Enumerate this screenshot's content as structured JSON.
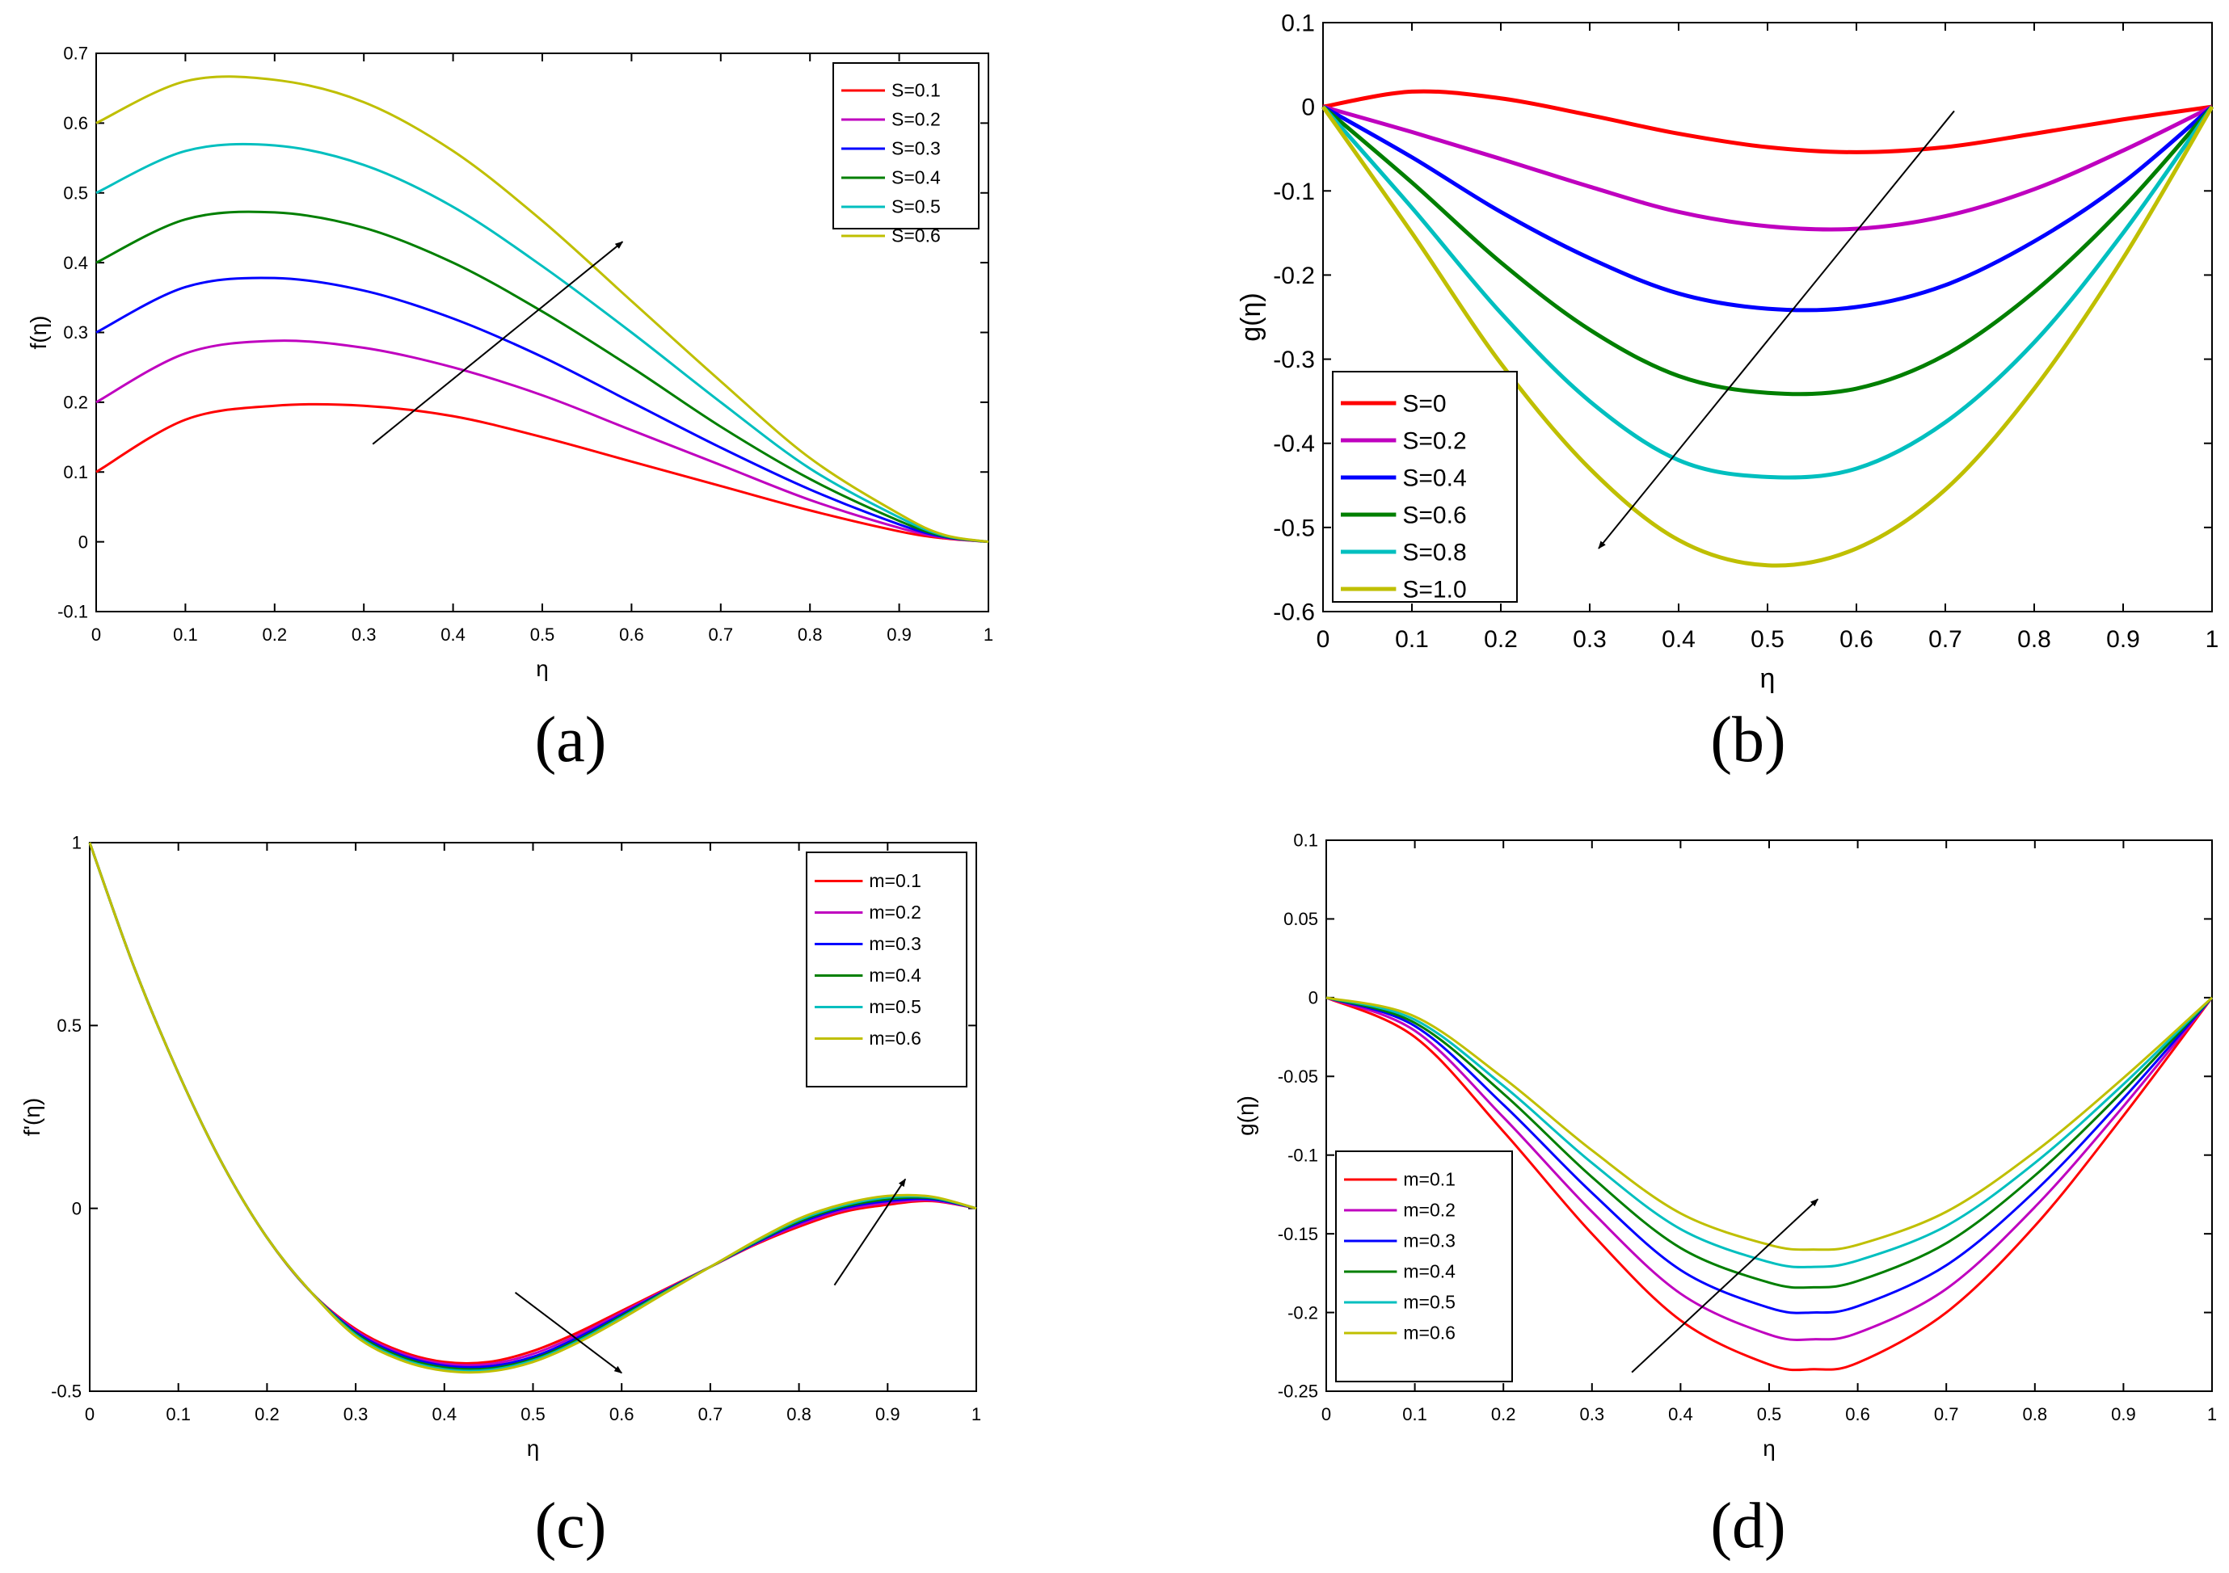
{
  "figure": {
    "panels": [
      {
        "id": "a",
        "caption": "(a)"
      },
      {
        "id": "b",
        "caption": "(b)"
      },
      {
        "id": "c",
        "caption": "(c)"
      },
      {
        "id": "d",
        "caption": "(d)"
      }
    ]
  },
  "chart_data": [
    {
      "panel": "a",
      "type": "line",
      "caption": "(a)",
      "xlabel": "η",
      "ylabel": "f(η)",
      "xlim": [
        0,
        1
      ],
      "ylim": [
        -0.1,
        0.7
      ],
      "xticks": [
        0,
        0.1,
        0.2,
        0.3,
        0.4,
        0.5,
        0.6,
        0.7,
        0.8,
        0.9,
        1
      ],
      "xticklabels": [
        "0",
        "0.1",
        "0.2",
        "0.3",
        "0.4",
        "0.5",
        "0.6",
        "0.7",
        "0.8",
        "0.9",
        "1"
      ],
      "yticks": [
        -0.1,
        0,
        0.1,
        0.2,
        0.3,
        0.4,
        0.5,
        0.6,
        0.7
      ],
      "yticklabels": [
        "-0.1",
        "0",
        "0.1",
        "0.2",
        "0.3",
        "0.4",
        "0.5",
        "0.6",
        "0.7"
      ],
      "legend_position": "top-right",
      "x": [
        0,
        0.1,
        0.2,
        0.3,
        0.4,
        0.5,
        0.6,
        0.7,
        0.8,
        0.9,
        0.95,
        1
      ],
      "series": [
        {
          "name": "S=0.1",
          "color": "#ff0000",
          "values": [
            0.1,
            0.175,
            0.195,
            0.195,
            0.18,
            0.15,
            0.115,
            0.08,
            0.045,
            0.015,
            0.005,
            0
          ]
        },
        {
          "name": "S=0.2",
          "color": "#bf00bf",
          "values": [
            0.2,
            0.27,
            0.288,
            0.278,
            0.25,
            0.21,
            0.16,
            0.11,
            0.06,
            0.02,
            0.006,
            0
          ]
        },
        {
          "name": "S=0.3",
          "color": "#0000ff",
          "values": [
            0.3,
            0.365,
            0.378,
            0.36,
            0.32,
            0.265,
            0.2,
            0.135,
            0.075,
            0.025,
            0.007,
            0
          ]
        },
        {
          "name": "S=0.4",
          "color": "#007f00",
          "values": [
            0.4,
            0.462,
            0.472,
            0.45,
            0.4,
            0.33,
            0.25,
            0.165,
            0.09,
            0.03,
            0.008,
            0
          ]
        },
        {
          "name": "S=0.5",
          "color": "#00bfbf",
          "values": [
            0.5,
            0.56,
            0.568,
            0.54,
            0.48,
            0.395,
            0.3,
            0.2,
            0.105,
            0.035,
            0.009,
            0
          ]
        },
        {
          "name": "S=0.6",
          "color": "#bfbf00",
          "values": [
            0.6,
            0.66,
            0.662,
            0.63,
            0.56,
            0.46,
            0.345,
            0.23,
            0.12,
            0.04,
            0.01,
            0
          ]
        }
      ],
      "arrows": [
        {
          "from": [
            0.31,
            0.14
          ],
          "to": [
            0.59,
            0.43
          ]
        }
      ]
    },
    {
      "panel": "b",
      "type": "line",
      "caption": "(b)",
      "xlabel": "η",
      "ylabel": "g(η)",
      "xlim": [
        0,
        1
      ],
      "ylim": [
        -0.6,
        0.1
      ],
      "xticks": [
        0,
        0.1,
        0.2,
        0.3,
        0.4,
        0.5,
        0.6,
        0.7,
        0.8,
        0.9,
        1
      ],
      "xticklabels": [
        "0",
        "0.1",
        "0.2",
        "0.3",
        "0.4",
        "0.5",
        "0.6",
        "0.7",
        "0.8",
        "0.9",
        "1"
      ],
      "yticks": [
        -0.6,
        -0.5,
        -0.4,
        -0.3,
        -0.2,
        -0.1,
        0,
        0.1
      ],
      "yticklabels": [
        "-0.6",
        "-0.5",
        "-0.4",
        "-0.3",
        "-0.2",
        "-0.1",
        "0",
        "0.1"
      ],
      "legend_position": "bottom-left",
      "x": [
        0,
        0.1,
        0.2,
        0.3,
        0.4,
        0.5,
        0.6,
        0.7,
        0.8,
        0.9,
        1
      ],
      "series": [
        {
          "name": "S=0",
          "color": "#ff0000",
          "values": [
            0,
            0.018,
            0.01,
            -0.01,
            -0.032,
            -0.048,
            -0.054,
            -0.048,
            -0.032,
            -0.015,
            0
          ]
        },
        {
          "name": "S=0.2",
          "color": "#bf00bf",
          "values": [
            0,
            -0.03,
            -0.062,
            -0.095,
            -0.125,
            -0.142,
            -0.145,
            -0.13,
            -0.098,
            -0.052,
            0
          ]
        },
        {
          "name": "S=0.4",
          "color": "#0000ff",
          "values": [
            0,
            -0.06,
            -0.125,
            -0.18,
            -0.222,
            -0.24,
            -0.238,
            -0.212,
            -0.16,
            -0.09,
            0
          ]
        },
        {
          "name": "S=0.6",
          "color": "#007f00",
          "values": [
            0,
            -0.09,
            -0.185,
            -0.265,
            -0.32,
            -0.34,
            -0.335,
            -0.295,
            -0.22,
            -0.12,
            0
          ]
        },
        {
          "name": "S=0.8",
          "color": "#00bfbf",
          "values": [
            0,
            -0.12,
            -0.245,
            -0.35,
            -0.42,
            -0.44,
            -0.43,
            -0.375,
            -0.28,
            -0.15,
            0
          ]
        },
        {
          "name": "S=1.0",
          "color": "#bfbf00",
          "values": [
            0,
            -0.15,
            -0.305,
            -0.43,
            -0.515,
            -0.545,
            -0.525,
            -0.455,
            -0.335,
            -0.18,
            0
          ]
        }
      ],
      "arrows": [
        {
          "from": [
            0.71,
            -0.005
          ],
          "to": [
            0.31,
            -0.525
          ]
        }
      ]
    },
    {
      "panel": "c",
      "type": "line",
      "caption": "(c)",
      "xlabel": "η",
      "ylabel": "f'(η)",
      "xlim": [
        0,
        1
      ],
      "ylim": [
        -0.5,
        1
      ],
      "xticks": [
        0,
        0.1,
        0.2,
        0.3,
        0.4,
        0.5,
        0.6,
        0.7,
        0.8,
        0.9,
        1
      ],
      "xticklabels": [
        "0",
        "0.1",
        "0.2",
        "0.3",
        "0.4",
        "0.5",
        "0.6",
        "0.7",
        "0.8",
        "0.9",
        "1"
      ],
      "yticks": [
        -0.5,
        0,
        0.5,
        1
      ],
      "yticklabels": [
        "-0.5",
        "0",
        "0.5",
        "1"
      ],
      "legend_position": "top-right",
      "x": [
        0,
        0.05,
        0.1,
        0.15,
        0.2,
        0.25,
        0.3,
        0.35,
        0.4,
        0.45,
        0.5,
        0.55,
        0.6,
        0.65,
        0.7,
        0.75,
        0.8,
        0.85,
        0.9,
        0.95,
        1
      ],
      "series": [
        {
          "name": "m=0.1",
          "color": "#ff0000",
          "values": [
            1,
            0.66,
            0.37,
            0.12,
            -0.08,
            -0.23,
            -0.33,
            -0.39,
            -0.42,
            -0.42,
            -0.39,
            -0.34,
            -0.28,
            -0.22,
            -0.16,
            -0.1,
            -0.05,
            -0.01,
            0.01,
            0.02,
            0
          ]
        },
        {
          "name": "m=0.2",
          "color": "#bf00bf",
          "values": [
            1,
            0.66,
            0.37,
            0.12,
            -0.08,
            -0.23,
            -0.334,
            -0.395,
            -0.425,
            -0.426,
            -0.398,
            -0.347,
            -0.285,
            -0.222,
            -0.16,
            -0.098,
            -0.045,
            -0.005,
            0.015,
            0.022,
            0
          ]
        },
        {
          "name": "m=0.3",
          "color": "#0000ff",
          "values": [
            1,
            0.66,
            0.37,
            0.12,
            -0.08,
            -0.23,
            -0.338,
            -0.4,
            -0.43,
            -0.432,
            -0.406,
            -0.354,
            -0.29,
            -0.224,
            -0.16,
            -0.096,
            -0.04,
            0,
            0.02,
            0.025,
            0
          ]
        },
        {
          "name": "m=0.4",
          "color": "#007f00",
          "values": [
            1,
            0.66,
            0.37,
            0.12,
            -0.08,
            -0.23,
            -0.342,
            -0.405,
            -0.435,
            -0.438,
            -0.412,
            -0.36,
            -0.294,
            -0.226,
            -0.16,
            -0.094,
            -0.036,
            0.004,
            0.025,
            0.028,
            0
          ]
        },
        {
          "name": "m=0.5",
          "color": "#00bfbf",
          "values": [
            1,
            0.66,
            0.37,
            0.12,
            -0.08,
            -0.23,
            -0.346,
            -0.41,
            -0.44,
            -0.442,
            -0.416,
            -0.364,
            -0.298,
            -0.228,
            -0.16,
            -0.092,
            -0.032,
            0.008,
            0.03,
            0.03,
            0
          ]
        },
        {
          "name": "m=0.6",
          "color": "#bfbf00",
          "values": [
            1,
            0.66,
            0.37,
            0.12,
            -0.08,
            -0.23,
            -0.35,
            -0.414,
            -0.444,
            -0.446,
            -0.42,
            -0.368,
            -0.302,
            -0.23,
            -0.16,
            -0.09,
            -0.028,
            0.012,
            0.034,
            0.032,
            0
          ]
        }
      ],
      "arrows": [
        {
          "from": [
            0.48,
            -0.23
          ],
          "to": [
            0.6,
            -0.45
          ]
        },
        {
          "from": [
            0.84,
            -0.21
          ],
          "to": [
            0.92,
            0.08
          ]
        }
      ]
    },
    {
      "panel": "d",
      "type": "line",
      "caption": "(d)",
      "xlabel": "η",
      "ylabel": "g(η)",
      "xlim": [
        0,
        1
      ],
      "ylim": [
        -0.25,
        0.1
      ],
      "xticks": [
        0,
        0.1,
        0.2,
        0.3,
        0.4,
        0.5,
        0.6,
        0.7,
        0.8,
        0.9,
        1
      ],
      "xticklabels": [
        "0",
        "0.1",
        "0.2",
        "0.3",
        "0.4",
        "0.5",
        "0.6",
        "0.7",
        "0.8",
        "0.9",
        "1"
      ],
      "yticks": [
        -0.25,
        -0.2,
        -0.15,
        -0.1,
        -0.05,
        0,
        0.05,
        0.1
      ],
      "yticklabels": [
        "-0.25",
        "-0.2",
        "-0.15",
        "-0.1",
        "-0.05",
        "0",
        "0.05",
        "0.1"
      ],
      "legend_position": "bottom-left",
      "x": [
        0,
        0.1,
        0.2,
        0.3,
        0.4,
        0.5,
        0.55,
        0.6,
        0.7,
        0.8,
        0.9,
        1
      ],
      "series": [
        {
          "name": "m=0.1",
          "color": "#ff0000",
          "values": [
            0,
            -0.025,
            -0.085,
            -0.15,
            -0.205,
            -0.233,
            -0.236,
            -0.232,
            -0.2,
            -0.145,
            -0.075,
            0
          ]
        },
        {
          "name": "m=0.2",
          "color": "#bf00bf",
          "values": [
            0,
            -0.021,
            -0.076,
            -0.136,
            -0.188,
            -0.214,
            -0.217,
            -0.213,
            -0.185,
            -0.133,
            -0.069,
            0
          ]
        },
        {
          "name": "m=0.3",
          "color": "#0000ff",
          "values": [
            0,
            -0.018,
            -0.068,
            -0.124,
            -0.173,
            -0.197,
            -0.2,
            -0.196,
            -0.17,
            -0.123,
            -0.064,
            0
          ]
        },
        {
          "name": "m=0.4",
          "color": "#007f00",
          "values": [
            0,
            -0.016,
            -0.061,
            -0.114,
            -0.159,
            -0.181,
            -0.184,
            -0.18,
            -0.156,
            -0.113,
            -0.059,
            0
          ]
        },
        {
          "name": "m=0.5",
          "color": "#00bfbf",
          "values": [
            0,
            -0.014,
            -0.056,
            -0.105,
            -0.147,
            -0.168,
            -0.171,
            -0.167,
            -0.145,
            -0.105,
            -0.055,
            0
          ]
        },
        {
          "name": "m=0.6",
          "color": "#bfbf00",
          "values": [
            0,
            -0.012,
            -0.051,
            -0.097,
            -0.137,
            -0.157,
            -0.16,
            -0.157,
            -0.136,
            -0.098,
            -0.051,
            0
          ]
        }
      ],
      "arrows": [
        {
          "from": [
            0.345,
            -0.238
          ],
          "to": [
            0.555,
            -0.128
          ]
        }
      ]
    }
  ]
}
